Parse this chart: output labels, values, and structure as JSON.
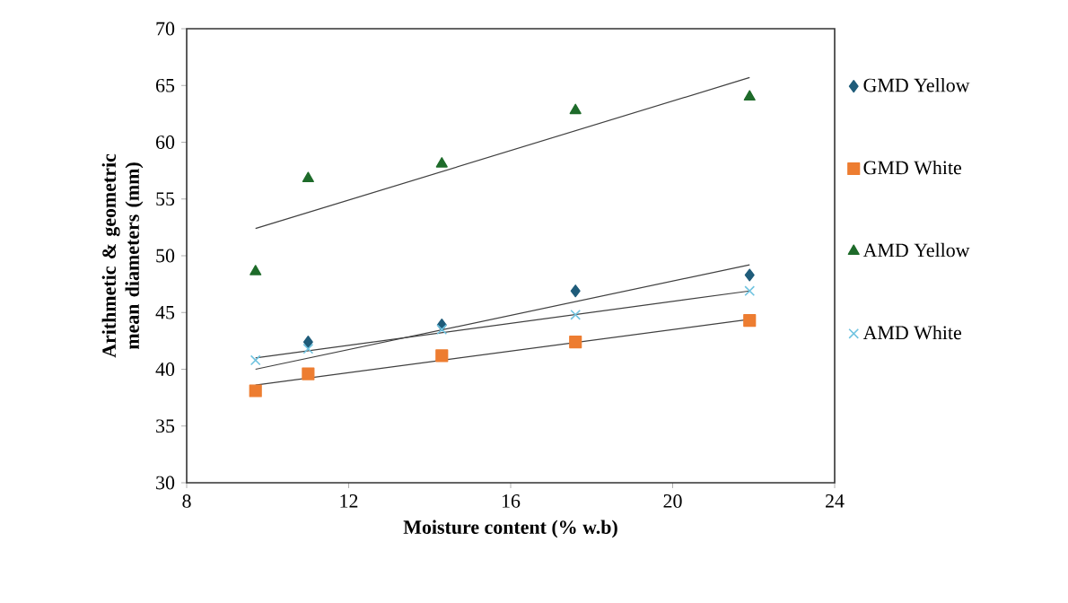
{
  "chart_data": {
    "type": "scatter",
    "xlabel": "Moisture content (% w.b)",
    "ylabel": "Arithmetic & geometric mean diameters (mm)",
    "xlim": [
      8,
      24
    ],
    "xticks": [
      8,
      12,
      16,
      20,
      24
    ],
    "ylim": [
      30,
      70
    ],
    "yticks": [
      30,
      35,
      40,
      45,
      50,
      55,
      60,
      65,
      70
    ],
    "grid": false,
    "legend": "right",
    "series": [
      {
        "name": "GMD Yellow",
        "color": "#1f5c7a",
        "marker": "diamond",
        "x": [
          11.0,
          14.3,
          17.6,
          21.9
        ],
        "values": [
          42.4,
          43.9,
          46.9,
          48.3
        ]
      },
      {
        "name": "GMD White",
        "color": "#ed7d31",
        "marker": "square",
        "x": [
          9.7,
          11.0,
          14.3,
          17.6,
          21.9
        ],
        "values": [
          38.1,
          39.6,
          41.2,
          42.4,
          44.3
        ]
      },
      {
        "name": "AMD Yellow",
        "color": "#1e6b2a",
        "marker": "triangle",
        "x": [
          9.7,
          11.0,
          14.3,
          17.6,
          21.9
        ],
        "values": [
          48.6,
          56.8,
          58.1,
          62.8,
          64.0
        ]
      },
      {
        "name": "AMD White",
        "color": "#6fc3e0",
        "marker": "cross",
        "x": [
          9.7,
          11.0,
          14.3,
          17.6,
          21.9
        ],
        "values": [
          40.8,
          41.8,
          43.5,
          44.8,
          46.9
        ]
      },
      {
        "type": "line",
        "color": "#404040",
        "marker": "none",
        "x": [
          9.7,
          21.9
        ],
        "values": [
          40.0,
          49.2
        ]
      },
      {
        "type": "line",
        "color": "#404040",
        "marker": "none",
        "x": [
          9.7,
          21.9
        ],
        "values": [
          38.6,
          44.4
        ]
      },
      {
        "type": "line",
        "color": "#404040",
        "marker": "none",
        "x": [
          9.7,
          21.9
        ],
        "values": [
          52.4,
          65.7
        ]
      },
      {
        "type": "line",
        "color": "#404040",
        "marker": "none",
        "x": [
          9.7,
          21.9
        ],
        "values": [
          41.0,
          46.9
        ]
      }
    ]
  }
}
